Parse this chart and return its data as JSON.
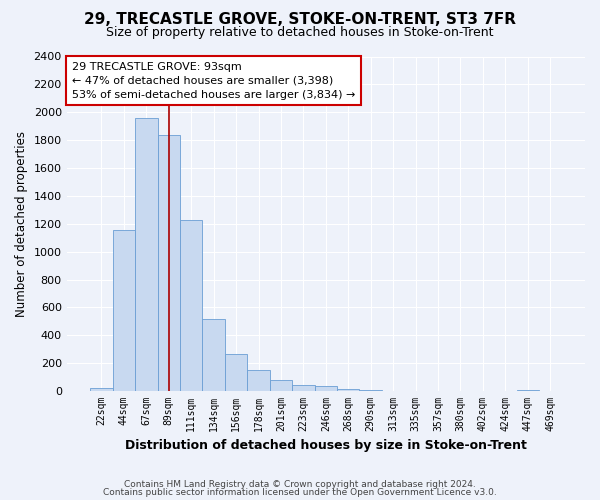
{
  "title": "29, TRECASTLE GROVE, STOKE-ON-TRENT, ST3 7FR",
  "subtitle": "Size of property relative to detached houses in Stoke-on-Trent",
  "xlabel": "Distribution of detached houses by size in Stoke-on-Trent",
  "ylabel": "Number of detached properties",
  "bin_labels": [
    "22sqm",
    "44sqm",
    "67sqm",
    "89sqm",
    "111sqm",
    "134sqm",
    "156sqm",
    "178sqm",
    "201sqm",
    "223sqm",
    "246sqm",
    "268sqm",
    "290sqm",
    "313sqm",
    "335sqm",
    "357sqm",
    "380sqm",
    "402sqm",
    "424sqm",
    "447sqm",
    "469sqm"
  ],
  "bar_heights": [
    25,
    1155,
    1960,
    1840,
    1225,
    520,
    268,
    150,
    80,
    45,
    35,
    18,
    8,
    3,
    2,
    1,
    1,
    0,
    0,
    10,
    0
  ],
  "bar_color": "#c8d9f0",
  "bar_edge_color": "#6a9ed4",
  "highlight_bar_idx": 3,
  "highlight_color": "#aa0000",
  "annotation_text_line1": "29 TRECASTLE GROVE: 93sqm",
  "annotation_text_line2": "← 47% of detached houses are smaller (3,398)",
  "annotation_text_line3": "53% of semi-detached houses are larger (3,834) →",
  "annotation_box_color": "#ffffff",
  "annotation_box_edge": "#cc0000",
  "ylim": [
    0,
    2400
  ],
  "yticks": [
    0,
    200,
    400,
    600,
    800,
    1000,
    1200,
    1400,
    1600,
    1800,
    2000,
    2200,
    2400
  ],
  "footer_line1": "Contains HM Land Registry data © Crown copyright and database right 2024.",
  "footer_line2": "Contains public sector information licensed under the Open Government Licence v3.0.",
  "bg_color": "#eef2fa"
}
